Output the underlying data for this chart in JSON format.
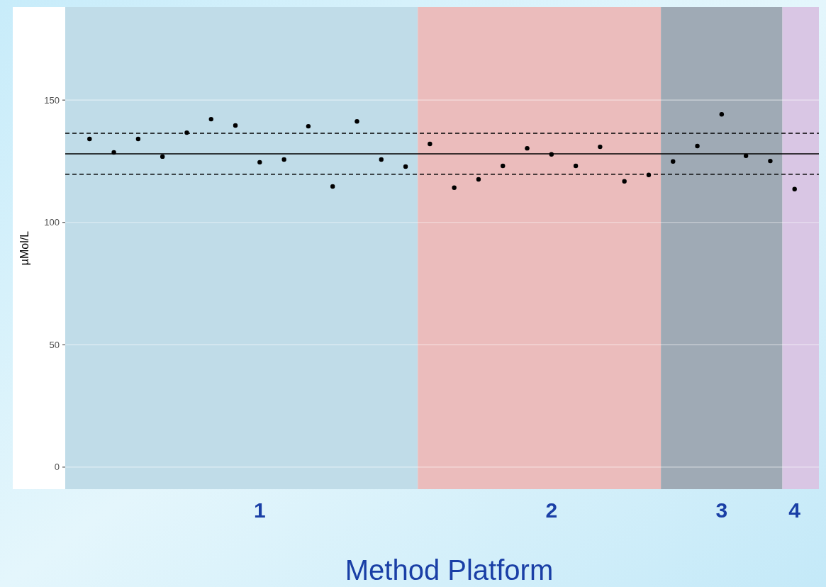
{
  "chart_data": {
    "type": "scatter",
    "xlabel": "Method Platform",
    "ylabel": "µMol/L",
    "categories": [
      null,
      null,
      null,
      null,
      null,
      null,
      null,
      "1",
      null,
      null,
      null,
      null,
      null,
      null,
      null,
      null,
      null,
      null,
      null,
      "2",
      null,
      null,
      null,
      null,
      null,
      null,
      "3",
      null,
      null,
      "4"
    ],
    "series": [
      {
        "color": "#000000",
        "values": [
          134.1,
          128.6,
          134.1,
          126.9,
          136.7,
          142.2,
          139.6,
          124.6,
          125.7,
          139.3,
          114.7,
          141.3,
          125.7,
          122.8,
          132.1,
          114.2,
          117.6,
          123.1,
          130.3,
          127.8,
          123.1,
          130.9,
          116.8,
          119.4,
          124.9,
          131.2,
          144.2,
          127.2,
          125.1,
          113.6
        ]
      }
    ],
    "ylim": [
      -9,
      188
    ],
    "yticks": [
      0,
      50,
      100,
      150
    ],
    "ref_lines": [
      {
        "axis": "y",
        "value": 128,
        "line_style": "solid",
        "color": "#000000"
      },
      {
        "axis": "y",
        "value": 136.4,
        "line_style": "dashed",
        "color": "#000000"
      },
      {
        "axis": "y",
        "value": 119.7,
        "line_style": "dashed",
        "color": "#000000"
      }
    ],
    "grid": "y",
    "marker": "circle"
  }
}
